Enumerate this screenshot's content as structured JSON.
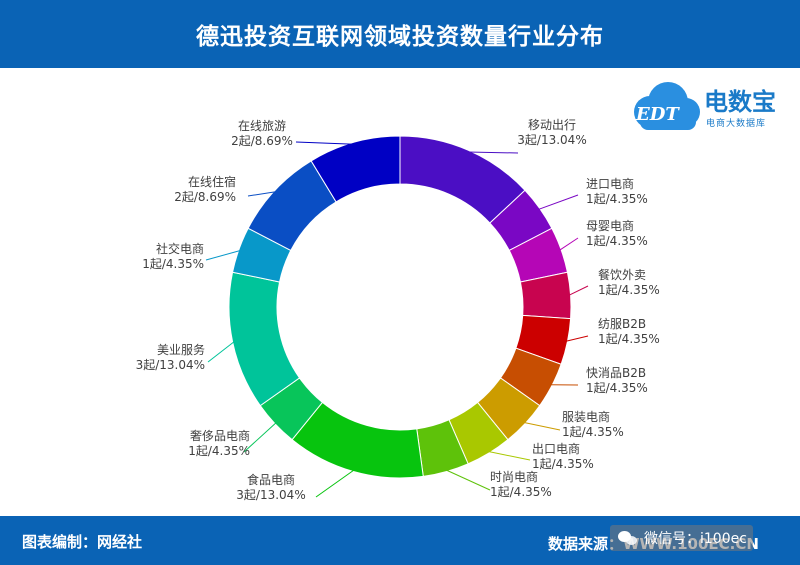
{
  "header": {
    "title": "德迅投资互联网领域投资数量行业分布"
  },
  "footer": {
    "credit": "图表编制：网经社",
    "source": "数据来源：WWW.100EC.CN",
    "wechat": "微信号：i100ec"
  },
  "logo": {
    "brand": "电数宝",
    "sub": "电商大数据库",
    "mark": "EDT"
  },
  "chart_data": {
    "type": "pie",
    "style": "donut",
    "title": "德迅投资互联网领域投资数量行业分布",
    "slices": [
      {
        "name": "移动出行",
        "count": 3,
        "percent": 13.04,
        "label": "3起/13.04%",
        "color": "#4b0ec4"
      },
      {
        "name": "进口电商",
        "count": 1,
        "percent": 4.35,
        "label": "1起/4.35%",
        "color": "#7a07c4"
      },
      {
        "name": "母婴电商",
        "count": 1,
        "percent": 4.35,
        "label": "1起/4.35%",
        "color": "#b506b6"
      },
      {
        "name": "餐饮外卖",
        "count": 1,
        "percent": 4.35,
        "label": "1起/4.35%",
        "color": "#c8044f"
      },
      {
        "name": "纺服B2B",
        "count": 1,
        "percent": 4.35,
        "label": "1起/4.35%",
        "color": "#cc0000"
      },
      {
        "name": "快消品B2B",
        "count": 1,
        "percent": 4.35,
        "label": "1起/4.35%",
        "color": "#c74e02"
      },
      {
        "name": "服装电商",
        "count": 1,
        "percent": 4.35,
        "label": "1起/4.35%",
        "color": "#cc9c00"
      },
      {
        "name": "出口电商",
        "count": 1,
        "percent": 4.35,
        "label": "1起/4.35%",
        "color": "#a9c800"
      },
      {
        "name": "时尚电商",
        "count": 1,
        "percent": 4.35,
        "label": "1起/4.35%",
        "color": "#5ec20a"
      },
      {
        "name": "食品电商",
        "count": 3,
        "percent": 13.04,
        "label": "3起/13.04%",
        "color": "#07c40e"
      },
      {
        "name": "奢侈品电商",
        "count": 1,
        "percent": 4.35,
        "label": "1起/4.35%",
        "color": "#08c55a"
      },
      {
        "name": "美业服务",
        "count": 3,
        "percent": 13.04,
        "label": "3起/13.04%",
        "color": "#00c49a"
      },
      {
        "name": "社交电商",
        "count": 1,
        "percent": 4.35,
        "label": "1起/4.35%",
        "color": "#0898c9"
      },
      {
        "name": "在线住宿",
        "count": 2,
        "percent": 8.69,
        "label": "2起/8.69%",
        "color": "#0a4ec4"
      },
      {
        "name": "在线旅游",
        "count": 2,
        "percent": 8.69,
        "label": "2起/8.69%",
        "color": "#0000c4"
      }
    ]
  }
}
